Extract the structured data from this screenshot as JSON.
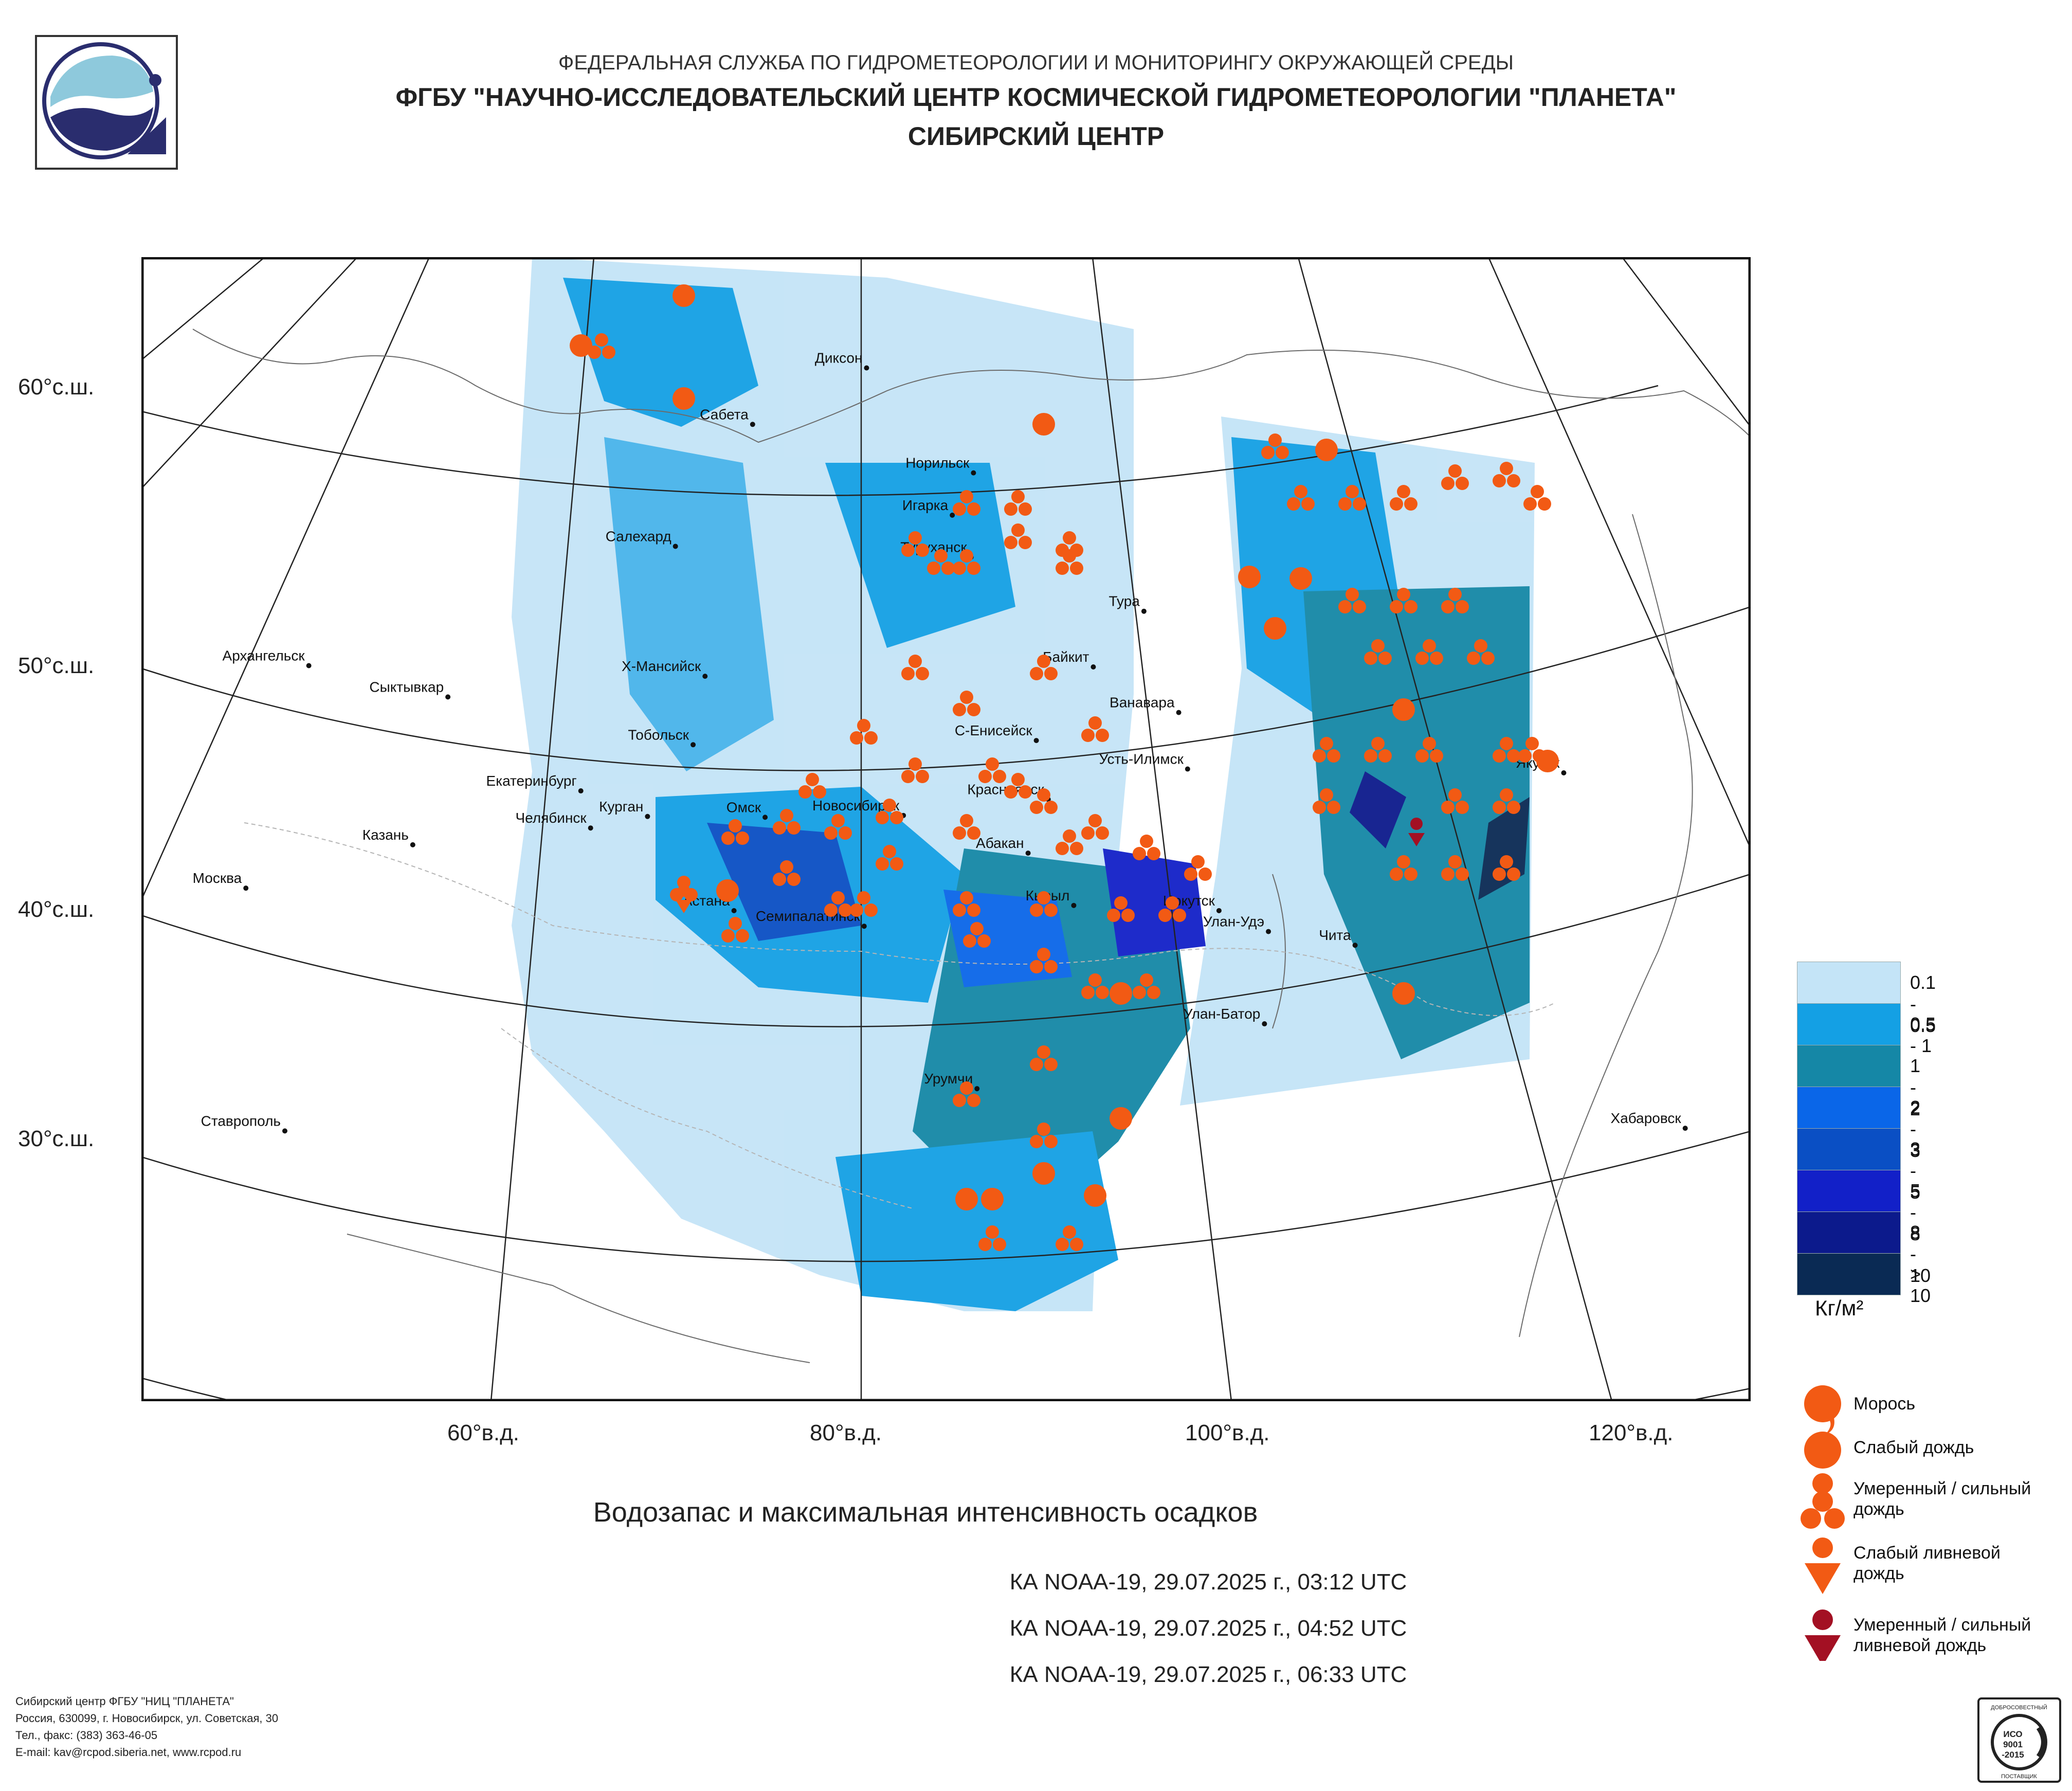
{
  "header": {
    "line1": "ФЕДЕРАЛЬНАЯ СЛУЖБА ПО ГИДРОМЕТЕОРОЛОГИИ И МОНИТОРИНГУ ОКРУЖАЮЩЕЙ СРЕДЫ",
    "line2": "ФГБУ \"НАУЧНО-ИССЛЕДОВАТЕЛЬСКИЙ ЦЕНТР КОСМИЧЕСКОЙ ГИДРОМЕТЕОРОЛОГИИ \"ПЛАНЕТА\"",
    "line3": "СИБИРСКИЙ ЦЕНТР"
  },
  "lat_labels": [
    "60°с.ш.",
    "50°с.ш.",
    "40°с.ш.",
    "30°с.ш."
  ],
  "lon_labels": [
    "60°в.д.",
    "80°в.д.",
    "100°в.д.",
    "120°в.д."
  ],
  "cities": [
    {
      "name": "Диксон",
      "lon": 80.4,
      "lat": 73.5
    },
    {
      "name": "Сабета",
      "lon": 72.0,
      "lat": 71.3
    },
    {
      "name": "Норильск",
      "lon": 88.2,
      "lat": 69.3
    },
    {
      "name": "Архангельск",
      "lon": 40.5,
      "lat": 64.5
    },
    {
      "name": "Игарка",
      "lon": 86.6,
      "lat": 67.5
    },
    {
      "name": "Салехард",
      "lon": 66.6,
      "lat": 66.5
    },
    {
      "name": "Туруханск",
      "lon": 87.9,
      "lat": 65.8
    },
    {
      "name": "Тура",
      "lon": 100.2,
      "lat": 64.3
    },
    {
      "name": "Сыктывкар",
      "lon": 50.8,
      "lat": 61.7
    },
    {
      "name": "Байкит",
      "lon": 96.4,
      "lat": 61.7
    },
    {
      "name": "Ванавара",
      "lon": 102.3,
      "lat": 60.3
    },
    {
      "name": "Москва",
      "lon": 37.6,
      "lat": 55.8
    },
    {
      "name": "Х-Мансийск",
      "lon": 69.0,
      "lat": 61.0
    },
    {
      "name": "С-Енисейск",
      "lon": 92.2,
      "lat": 58.4
    },
    {
      "name": "Усть-Илимск",
      "lon": 102.7,
      "lat": 58.0
    },
    {
      "name": "Казань",
      "lon": 49.1,
      "lat": 55.8
    },
    {
      "name": "Екатеринбург",
      "lon": 60.6,
      "lat": 56.8
    },
    {
      "name": "Тобольск",
      "lon": 68.3,
      "lat": 58.2
    },
    {
      "name": "Челябинск",
      "lon": 61.4,
      "lat": 55.2
    },
    {
      "name": "Курган",
      "lon": 65.3,
      "lat": 55.4
    },
    {
      "name": "Красноярск",
      "lon": 92.9,
      "lat": 56.0
    },
    {
      "name": "Якутск",
      "lon": 129.7,
      "lat": 62.0
    },
    {
      "name": "Хабаровск",
      "lon": 135.1,
      "lat": 48.5
    },
    {
      "name": "Омск",
      "lon": 73.4,
      "lat": 55.0
    },
    {
      "name": "Новосибирск",
      "lon": 82.9,
      "lat": 55.0
    },
    {
      "name": "Абакан",
      "lon": 91.4,
      "lat": 53.7
    },
    {
      "name": "Чита",
      "lon": 113.5,
      "lat": 52.0
    },
    {
      "name": "Улан-Удэ",
      "lon": 107.6,
      "lat": 51.8
    },
    {
      "name": "Иркутск",
      "lon": 104.3,
      "lat": 52.3
    },
    {
      "name": "Кызыл",
      "lon": 94.4,
      "lat": 51.7
    },
    {
      "name": "Астана",
      "lon": 71.4,
      "lat": 51.2
    },
    {
      "name": "Семипалатинск",
      "lon": 80.2,
      "lat": 50.4
    },
    {
      "name": "Улан-Батор",
      "lon": 106.9,
      "lat": 47.9
    },
    {
      "name": "Ставрополь",
      "lon": 42.0,
      "lat": 45.0
    },
    {
      "name": "Урумчи",
      "lon": 87.6,
      "lat": 43.8
    }
  ],
  "main_title": "Водозапас и максимальная интенсивность осадков",
  "passes": [
    "КА NOAA-19, 29.07.2025 г., 03:12 UTC",
    "КА NOAA-19, 29.07.2025 г., 04:52 UTC",
    "КА NOAA-19, 29.07.2025 г., 06:33 UTC"
  ],
  "scale_legend": [
    {
      "label": "0.1 - 0.5",
      "color": "#c4e4f7"
    },
    {
      "label": "0.5 - 1",
      "color": "#14a0e4"
    },
    {
      "label": "1 - 2",
      "color": "#1587a6"
    },
    {
      "label": "2 - 3",
      "color": "#0a66e8"
    },
    {
      "label": "3 - 5",
      "color": "#0a4fc4"
    },
    {
      "label": "5 - 8",
      "color": "#1220c8"
    },
    {
      "label": "8 - 10",
      "color": "#0c1a8c"
    },
    {
      "label": "> 10",
      "color": "#0a2a54"
    }
  ],
  "unit": "Кг/м²",
  "precip_legend": [
    {
      "label": "Морось",
      "symbol": "drizzle"
    },
    {
      "label": "Слабый дождь",
      "symbol": "light-rain"
    },
    {
      "label": "Умеренный / сильный\nдождь",
      "symbol": "moderate-rain"
    },
    {
      "label": "Слабый ливневой\nдождь",
      "symbol": "light-shower"
    },
    {
      "label": "Умеренный / сильный\nливневой дождь",
      "symbol": "heavy-shower"
    }
  ],
  "colors": {
    "rain": "#f25a14",
    "shower_heavy": "#a31023",
    "border": "#111111"
  },
  "footer": [
    "Сибирский центр ФГБУ \"НИЦ \"ПЛАНЕТА\"",
    "Россия, 630099, г. Новосибирск, ул. Советская, 30",
    "Тел., факс: (383) 363-46-05",
    "E-mail: kav@rcpod.siberia.net, www.rcpod.ru"
  ],
  "iso_badge": {
    "top": "ДОБРОСОВЕСТНЫЙ",
    "text": "ИСО\n9001\n-2015",
    "bottom": "ПОСТАВЩИК"
  }
}
